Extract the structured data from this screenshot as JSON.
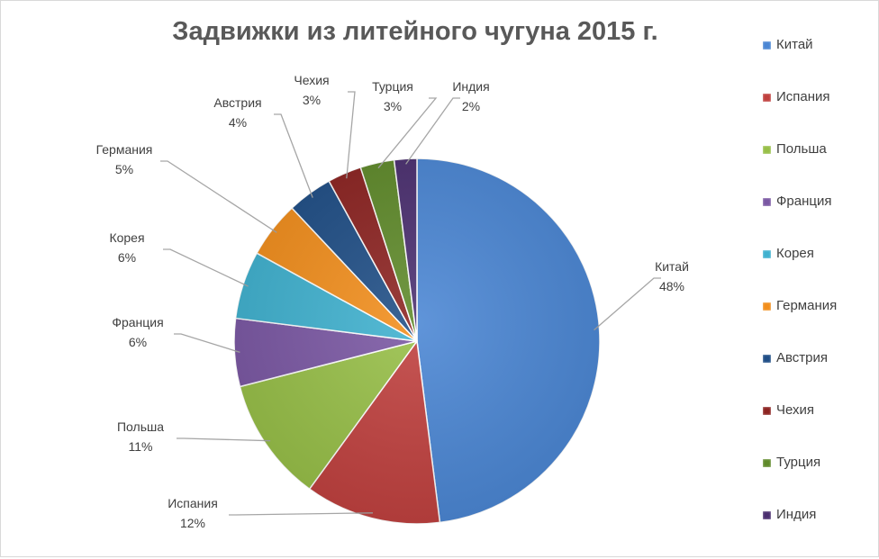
{
  "chart_data": {
    "type": "pie",
    "title": "Задвижки из литейного чугуна 2015 г.",
    "legend_position": "right",
    "slices": [
      {
        "label": "Китай",
        "value": 48,
        "value_label": "48%",
        "color": "#4a86d4"
      },
      {
        "label": "Испания",
        "value": 12,
        "value_label": "12%",
        "color": "#c0403e"
      },
      {
        "label": "Польша",
        "value": 11,
        "value_label": "11%",
        "color": "#97bf47"
      },
      {
        "label": "Франция",
        "value": 6,
        "value_label": "6%",
        "color": "#7a57a3"
      },
      {
        "label": "Корея",
        "value": 6,
        "value_label": "6%",
        "color": "#3fb1cf"
      },
      {
        "label": "Германия",
        "value": 5,
        "value_label": "5%",
        "color": "#f28e1c"
      },
      {
        "label": "Австрия",
        "value": 4,
        "value_label": "4%",
        "color": "#1f4e86"
      },
      {
        "label": "Чехия",
        "value": 3,
        "value_label": "3%",
        "color": "#8c2321"
      },
      {
        "label": "Турция",
        "value": 3,
        "value_label": "3%",
        "color": "#5f8a2a"
      },
      {
        "label": "Индия",
        "value": 2,
        "value_label": "2%",
        "color": "#4b2f70"
      }
    ]
  }
}
